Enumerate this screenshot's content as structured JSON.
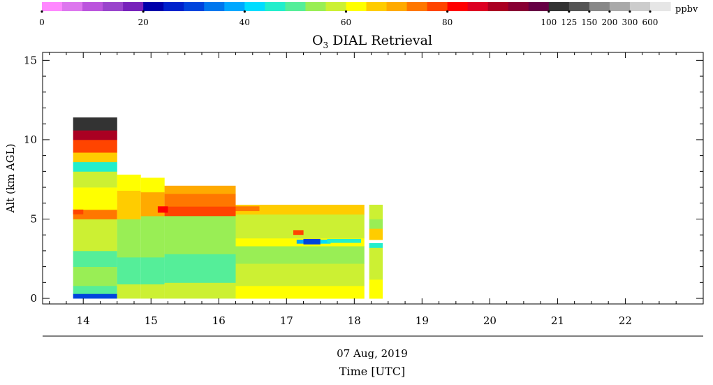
{
  "chart_data": {
    "type": "heatmap",
    "title": "O3 DIAL Retrieval",
    "title_main": "O",
    "title_sub": "3",
    "title_rest": " DIAL Retrieval",
    "ylabel": "Alt (km AGL)",
    "xlabel": "Time [UTC]",
    "date_label": "07 Aug, 2019",
    "x_ticks": [
      "14",
      "15",
      "16",
      "17",
      "18",
      "19",
      "20",
      "21",
      "22"
    ],
    "y_ticks": [
      "0",
      "5",
      "10",
      "15"
    ],
    "xlim_hours": [
      13.4,
      23.15
    ],
    "ylim_km": [
      -0.35,
      15.5
    ],
    "colorbar": {
      "unit": "ppbv",
      "tick_labels": [
        "0",
        "20",
        "40",
        "60",
        "80",
        "100",
        "125",
        "150",
        "200",
        "300",
        "600"
      ],
      "colors": [
        "#ff88ff",
        "#dd77ee",
        "#bb55dd",
        "#9944cc",
        "#7722bb",
        "#0000aa",
        "#0022cc",
        "#0044dd",
        "#0077ee",
        "#00a8ff",
        "#00ddff",
        "#22eecc",
        "#55ee99",
        "#99ee55",
        "#ccf033",
        "#ffff00",
        "#ffcc00",
        "#ffaa00",
        "#ff7700",
        "#ff4400",
        "#ff0000",
        "#dd0022",
        "#aa0022",
        "#880033",
        "#660044",
        "#333333",
        "#555555",
        "#888888",
        "#aaaaaa",
        "#cccccc",
        "#e6e6e6"
      ]
    },
    "data_blocks": [
      {
        "t0": 13.85,
        "t1": 14.5,
        "top_km": 11.4,
        "profile": [
          {
            "z0": 0.0,
            "z1": 0.3,
            "c": "#0044dd"
          },
          {
            "z0": 0.3,
            "z1": 0.8,
            "c": "#55ee99"
          },
          {
            "z0": 0.8,
            "z1": 2.0,
            "c": "#99ee55"
          },
          {
            "z0": 2.0,
            "z1": 3.0,
            "c": "#55ee99"
          },
          {
            "z0": 3.0,
            "z1": 5.0,
            "c": "#ccf033"
          },
          {
            "z0": 5.0,
            "z1": 5.6,
            "c": "#ff7700"
          },
          {
            "z0": 5.6,
            "z1": 7.0,
            "c": "#ffff00"
          },
          {
            "z0": 7.0,
            "z1": 8.0,
            "c": "#ccf033"
          },
          {
            "z0": 8.0,
            "z1": 8.6,
            "c": "#22eecc"
          },
          {
            "z0": 8.6,
            "z1": 9.2,
            "c": "#ffcc00"
          },
          {
            "z0": 9.2,
            "z1": 10.0,
            "c": "#ff4400"
          },
          {
            "z0": 10.0,
            "z1": 10.6,
            "c": "#aa0022"
          },
          {
            "z0": 10.6,
            "z1": 11.4,
            "c": "#333333"
          }
        ]
      },
      {
        "t0": 14.5,
        "t1": 14.85,
        "top_km": 7.8,
        "profile": [
          {
            "z0": 0.0,
            "z1": 0.9,
            "c": "#ccf033"
          },
          {
            "z0": 0.9,
            "z1": 2.6,
            "c": "#55ee99"
          },
          {
            "z0": 2.6,
            "z1": 5.0,
            "c": "#99ee55"
          },
          {
            "z0": 5.0,
            "z1": 6.8,
            "c": "#ffcc00"
          },
          {
            "z0": 6.8,
            "z1": 7.8,
            "c": "#ffff00"
          }
        ]
      },
      {
        "t0": 14.85,
        "t1": 15.2,
        "top_km": 7.6,
        "profile": [
          {
            "z0": 0.0,
            "z1": 0.9,
            "c": "#ccf033"
          },
          {
            "z0": 0.9,
            "z1": 2.6,
            "c": "#55ee99"
          },
          {
            "z0": 2.6,
            "z1": 5.2,
            "c": "#99ee55"
          },
          {
            "z0": 5.2,
            "z1": 6.7,
            "c": "#ffaa00"
          },
          {
            "z0": 6.7,
            "z1": 7.6,
            "c": "#ffff00"
          }
        ]
      },
      {
        "t0": 15.2,
        "t1": 16.25,
        "top_km": 7.1,
        "profile": [
          {
            "z0": 0.0,
            "z1": 1.0,
            "c": "#ccf033"
          },
          {
            "z0": 1.0,
            "z1": 2.8,
            "c": "#55ee99"
          },
          {
            "z0": 2.8,
            "z1": 5.2,
            "c": "#99ee55"
          },
          {
            "z0": 5.2,
            "z1": 5.8,
            "c": "#ff4400"
          },
          {
            "z0": 5.8,
            "z1": 6.6,
            "c": "#ff7700"
          },
          {
            "z0": 6.6,
            "z1": 7.1,
            "c": "#ffaa00"
          }
        ]
      },
      {
        "t0": 16.25,
        "t1": 18.15,
        "top_km": 5.9,
        "profile": [
          {
            "z0": 0.0,
            "z1": 0.8,
            "c": "#ffff00"
          },
          {
            "z0": 0.8,
            "z1": 2.2,
            "c": "#ccf033"
          },
          {
            "z0": 2.2,
            "z1": 3.3,
            "c": "#99ee55"
          },
          {
            "z0": 3.3,
            "z1": 3.8,
            "c": "#ffff00"
          },
          {
            "z0": 3.8,
            "z1": 5.3,
            "c": "#ccf033"
          },
          {
            "z0": 5.3,
            "z1": 5.9,
            "c": "#ffcc00"
          }
        ]
      },
      {
        "t0": 18.22,
        "t1": 18.42,
        "top_km": 5.9,
        "profile": [
          {
            "z0": 0.0,
            "z1": 1.2,
            "c": "#ffff00"
          },
          {
            "z0": 1.2,
            "z1": 3.2,
            "c": "#ccf033"
          },
          {
            "z0": 3.2,
            "z1": 3.5,
            "c": "#22eecc"
          },
          {
            "z0": 3.5,
            "z1": 3.7,
            "c": "#ffffff"
          },
          {
            "z0": 3.7,
            "z1": 4.4,
            "c": "#ffcc00"
          },
          {
            "z0": 4.4,
            "z1": 5.0,
            "c": "#99ee55"
          },
          {
            "z0": 5.0,
            "z1": 5.9,
            "c": "#ccf033"
          }
        ]
      }
    ],
    "features": [
      {
        "t0": 17.25,
        "t1": 17.5,
        "z0": 3.4,
        "z1": 3.75,
        "c": "#0044dd"
      },
      {
        "t0": 17.15,
        "t1": 17.25,
        "z0": 3.45,
        "z1": 3.7,
        "c": "#00a8ff"
      },
      {
        "t0": 17.5,
        "t1": 17.65,
        "z0": 3.45,
        "z1": 3.7,
        "c": "#00ddff"
      },
      {
        "t0": 17.6,
        "t1": 18.1,
        "z0": 3.5,
        "z1": 3.75,
        "c": "#22eecc"
      },
      {
        "t0": 17.1,
        "t1": 17.25,
        "z0": 4.0,
        "z1": 4.3,
        "c": "#ff4400"
      },
      {
        "t0": 15.1,
        "t1": 15.25,
        "z0": 5.4,
        "z1": 5.8,
        "c": "#ff0000"
      },
      {
        "t0": 13.85,
        "t1": 14.0,
        "z0": 5.3,
        "z1": 5.6,
        "c": "#ff4400"
      },
      {
        "t0": 16.25,
        "t1": 16.6,
        "z0": 5.5,
        "z1": 5.8,
        "c": "#ff7700"
      }
    ]
  }
}
